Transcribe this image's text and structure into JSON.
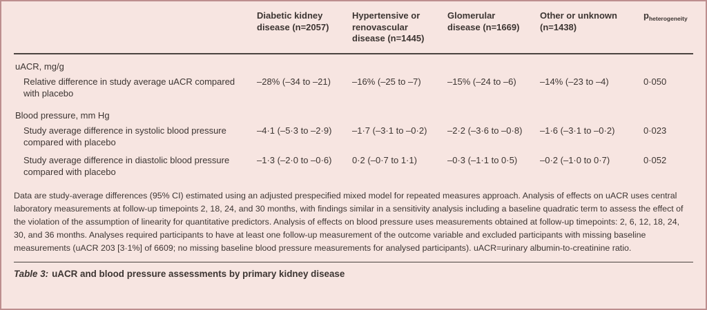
{
  "colors": {
    "background": "#f7e5e1",
    "border": "#bd8e8e",
    "rule": "#4a433f",
    "text": "#3c3532"
  },
  "header": {
    "columns": [
      "Diabetic kidney disease (n=2057)",
      "Hypertensive or renovascular disease (n=1445)",
      "Glomerular disease (n=1669)",
      "Other or unknown (n=1438)"
    ],
    "p_base": "p",
    "p_sub": "heterogeneity"
  },
  "body": {
    "sections": [
      {
        "label": "uACR, mg/g"
      },
      {
        "label": "Blood pressure, mm Hg"
      }
    ],
    "rows": [
      {
        "label": "Relative difference in study average uACR compared with placebo",
        "values": [
          "–28% (–34 to –21)",
          "–16% (–25 to –7)",
          "–15% (–24 to –6)",
          "–14% (–23 to –4)",
          "0·050"
        ]
      },
      {
        "label": "Study average difference in systolic blood pressure compared with placebo",
        "values": [
          "–4·1 (–5·3 to –2·9)",
          "–1·7 (–3·1 to –0·2)",
          "–2·2 (–3·6 to –0·8)",
          "–1·6 (–3·1 to –0·2)",
          "0·023"
        ]
      },
      {
        "label": "Study average difference in diastolic blood pressure compared with placebo",
        "values": [
          "–1·3 (–2·0 to –0·6)",
          "0·2 (–0·7 to 1·1)",
          "–0·3 (–1·1 to 0·5)",
          "–0·2 (–1·0 to 0·7)",
          "0·052"
        ]
      }
    ]
  },
  "footnote": "Data are study-average differences (95% CI) estimated using an adjusted prespecified mixed model for repeated measures approach. Analysis of effects on uACR uses central laboratory measurements at follow-up timepoints 2, 18, 24, and 30 months, with findings similar in a sensitivity analysis including a baseline quadratic term to assess the effect of the violation of the assumption of linearity for quantitative predictors. Analysis of effects on blood pressure uses measurements obtained at follow-up timepoints: 2, 6, 12, 18, 24, 30, and 36 months. Analyses required participants to have at least one follow-up measurement of the outcome variable and excluded participants with missing baseline measurements (uACR 203 [3·1%] of 6609; no missing baseline blood pressure measurements for analysed participants). uACR=urinary albumin-to-creatinine ratio.",
  "caption": {
    "prefix": "Table 3:",
    "text": "uACR and blood pressure assessments by primary kidney disease"
  }
}
